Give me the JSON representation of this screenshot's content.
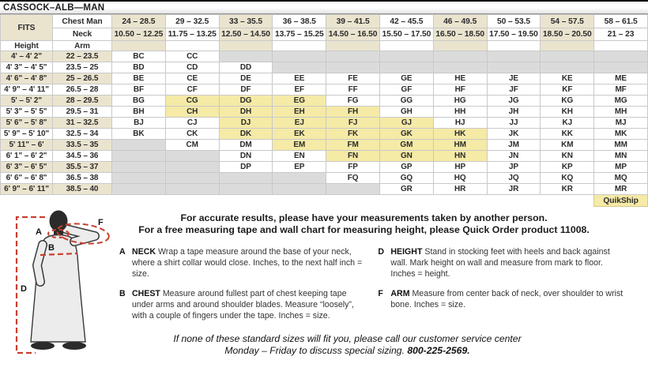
{
  "title": "CASSOCK–ALB—MAN",
  "table": {
    "fits_label": "FITS",
    "chest_label": "Chest Man",
    "neck_label": "Neck",
    "height_label": "Height",
    "arm_label": "Arm",
    "quikship_label": "QuikShip",
    "colors": {
      "cream": "#eae4cf",
      "quikship_yellow": "#f5eaa6",
      "unavailable_gray": "#dbdbdb"
    },
    "chest_ranges": [
      "24 – 28.5",
      "29 – 32.5",
      "33 – 35.5",
      "36 – 38.5",
      "39 – 41.5",
      "42 – 45.5",
      "46 – 49.5",
      "50 – 53.5",
      "54 – 57.5",
      "58 – 61.5"
    ],
    "neck_ranges": [
      "10.50 – 12.25",
      "11.75 – 13.25",
      "12.50 – 14.50",
      "13.75 – 15.25",
      "14.50 – 16.50",
      "15.50 – 17.50",
      "16.50 – 18.50",
      "17.50 – 19.50",
      "18.50 – 20.50",
      "21 – 23"
    ],
    "shaded_columns": [
      0,
      2,
      4,
      6,
      8
    ],
    "rows": [
      {
        "height": "4' – 4' 2\"",
        "arm": "22 – 23.5",
        "cells": [
          "BC",
          "CC",
          null,
          null,
          null,
          null,
          null,
          null,
          null,
          null
        ]
      },
      {
        "height": "4' 3\" – 4' 5\"",
        "arm": "23.5 – 25",
        "cells": [
          "BD",
          "CD",
          "DD",
          null,
          null,
          null,
          null,
          null,
          null,
          null
        ]
      },
      {
        "height": "4' 6\" – 4' 8\"",
        "arm": "25 – 26.5",
        "cells": [
          "BE",
          "CE",
          "DE",
          "EE",
          "FE",
          "GE",
          "HE",
          "JE",
          "KE",
          "ME"
        ]
      },
      {
        "height": "4' 9\" – 4' 11\"",
        "arm": "26.5 – 28",
        "cells": [
          "BF",
          "CF",
          "DF",
          "EF",
          "FF",
          "GF",
          "HF",
          "JF",
          "KF",
          "MF"
        ]
      },
      {
        "height": "5' – 5' 2\"",
        "arm": "28 – 29.5",
        "cells": [
          "BG",
          "CG",
          "DG",
          "EG",
          "FG",
          "GG",
          "HG",
          "JG",
          "KG",
          "MG"
        ]
      },
      {
        "height": "5' 3\" – 5' 5\"",
        "arm": "29.5 – 31",
        "cells": [
          "BH",
          "CH",
          "DH",
          "EH",
          "FH",
          "GH",
          "HH",
          "JH",
          "KH",
          "MH"
        ]
      },
      {
        "height": "5' 6\" – 5' 8\"",
        "arm": "31 – 32.5",
        "cells": [
          "BJ",
          "CJ",
          "DJ",
          "EJ",
          "FJ",
          "GJ",
          "HJ",
          "JJ",
          "KJ",
          "MJ"
        ]
      },
      {
        "height": "5' 9\" – 5' 10\"",
        "arm": "32.5 – 34",
        "cells": [
          "BK",
          "CK",
          "DK",
          "EK",
          "FK",
          "GK",
          "HK",
          "JK",
          "KK",
          "MK"
        ]
      },
      {
        "height": "5' 11\" – 6'",
        "arm": "33.5 – 35",
        "cells": [
          null,
          "CM",
          "DM",
          "EM",
          "FM",
          "GM",
          "HM",
          "JM",
          "KM",
          "MM"
        ]
      },
      {
        "height": "6' 1\" – 6' 2\"",
        "arm": "34.5 – 36",
        "cells": [
          null,
          null,
          "DN",
          "EN",
          "FN",
          "GN",
          "HN",
          "JN",
          "KN",
          "MN"
        ]
      },
      {
        "height": "6' 3\" – 6' 5\"",
        "arm": "35.5 – 37",
        "cells": [
          null,
          null,
          "DP",
          "EP",
          "FP",
          "GP",
          "HP",
          "JP",
          "KP",
          "MP"
        ]
      },
      {
        "height": "6' 6\" – 6' 8\"",
        "arm": "36.5 – 38",
        "cells": [
          null,
          null,
          null,
          null,
          "FQ",
          "GQ",
          "HQ",
          "JQ",
          "KQ",
          "MQ"
        ]
      },
      {
        "height": "6' 9\" – 6' 11\"",
        "arm": "38.5 – 40",
        "cells": [
          null,
          null,
          null,
          null,
          null,
          "GR",
          "HR",
          "JR",
          "KR",
          "MR"
        ]
      }
    ],
    "quikship_codes": [
      "CG",
      "DG",
      "EG",
      "CH",
      "DH",
      "EH",
      "FH",
      "DJ",
      "EJ",
      "FJ",
      "GJ",
      "DK",
      "EK",
      "FK",
      "GK",
      "HK",
      "EM",
      "FM",
      "GM",
      "HM",
      "FN",
      "GN",
      "HN"
    ]
  },
  "notes": {
    "line1": "For accurate results, please have your measurements taken by another person.",
    "line2": "For a free measuring tape and wall chart for measuring height, please Quick Order product 11008."
  },
  "instructions": [
    {
      "letter": "A",
      "term": "NECK",
      "text": "Wrap a tape measure around the base of your neck, where a shirt collar would close. Inches, to the next half inch = size."
    },
    {
      "letter": "D",
      "term": "HEIGHT",
      "text": "Stand in stocking feet with heels and back against wall. Mark height on wall and measure from mark to floor. Inches = height."
    },
    {
      "letter": "B",
      "term": "CHEST",
      "text": "Measure around fullest part of chest keeping tape under arms and around shoulder blades. Measure “loosely”, with a couple of fingers under the tape. Inches = size."
    },
    {
      "letter": "F",
      "term": "ARM",
      "text": "Measure from center back of neck, over shoulder to wrist bone. Inches = size."
    }
  ],
  "footer": {
    "line1": "If none of these standard sizes will fit you, please call our customer service center",
    "line2": "Monday – Friday to discuss special sizing.",
    "phone": "800-225-2569."
  },
  "figure": {
    "labels": {
      "neck": "A",
      "chest": "B",
      "height": "D",
      "arm": "F"
    },
    "measure_line_color": "#c8402e"
  }
}
